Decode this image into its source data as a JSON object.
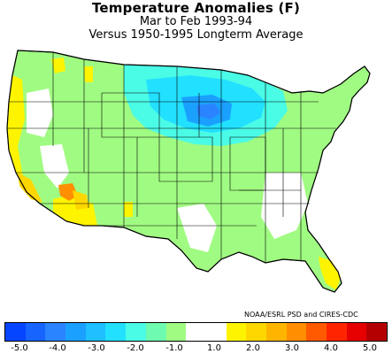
{
  "title": "Temperature Anomalies (F)",
  "subtitle": "Mar to Feb 1993-94",
  "subtitle2": "Versus 1950-1995 Longterm Average",
  "credit": "NOAA/ESRL PSD and CIRES-CDC",
  "legend": {
    "colors": [
      "#0645ff",
      "#1764ff",
      "#2b84ff",
      "#1aa1ff",
      "#1ec0ff",
      "#22e0ff",
      "#4afbe6",
      "#6ffbaf",
      "#a0fb82",
      "#ffffff",
      "#ffffff",
      "#fff400",
      "#ffd700",
      "#ffb500",
      "#ff8f00",
      "#ff5a00",
      "#ff2500",
      "#e60000",
      "#b40000"
    ],
    "ticks": [
      "-5.0",
      "-4.0",
      "-3.0",
      "-2.0",
      "-1.0",
      "1.0",
      "2.0",
      "3.0",
      "4.0",
      "5.0"
    ]
  },
  "map_colors": {
    "land_outline": "#333333",
    "state_border": "#000000",
    "background": "#ffffff"
  }
}
